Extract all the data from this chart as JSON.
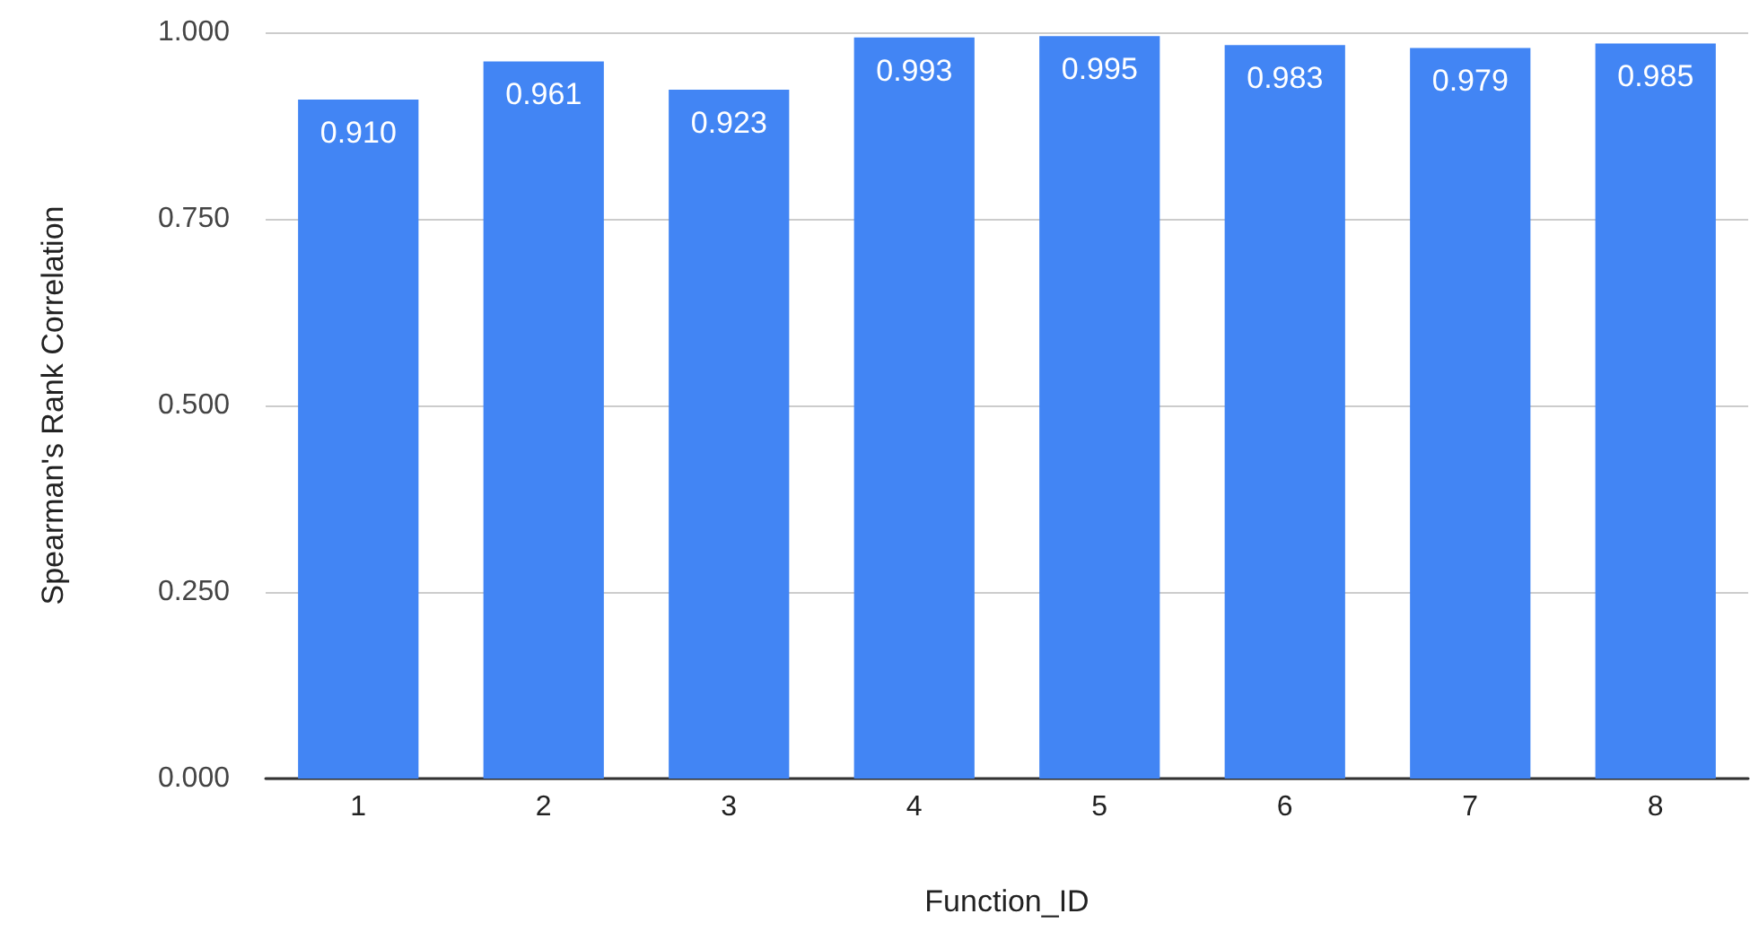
{
  "chart_data": {
    "type": "bar",
    "xlabel": "Function_ID",
    "ylabel": "Spearman's Rank Correlation",
    "categories": [
      "1",
      "2",
      "3",
      "4",
      "5",
      "6",
      "7",
      "8"
    ],
    "values": [
      0.91,
      0.961,
      0.923,
      0.993,
      0.995,
      0.983,
      0.979,
      0.985
    ],
    "value_labels": [
      "0.910",
      "0.961",
      "0.923",
      "0.993",
      "0.995",
      "0.983",
      "0.979",
      "0.985"
    ],
    "color": "#4285f4",
    "ylim": [
      0,
      1
    ],
    "yticks": [
      {
        "value": 0,
        "label": "0.000"
      },
      {
        "value": 0.25,
        "label": "0.250"
      },
      {
        "value": 0.5,
        "label": "0.500"
      },
      {
        "value": 0.75,
        "label": "0.750"
      },
      {
        "value": 1,
        "label": "1.000"
      }
    ],
    "grid": "y"
  }
}
